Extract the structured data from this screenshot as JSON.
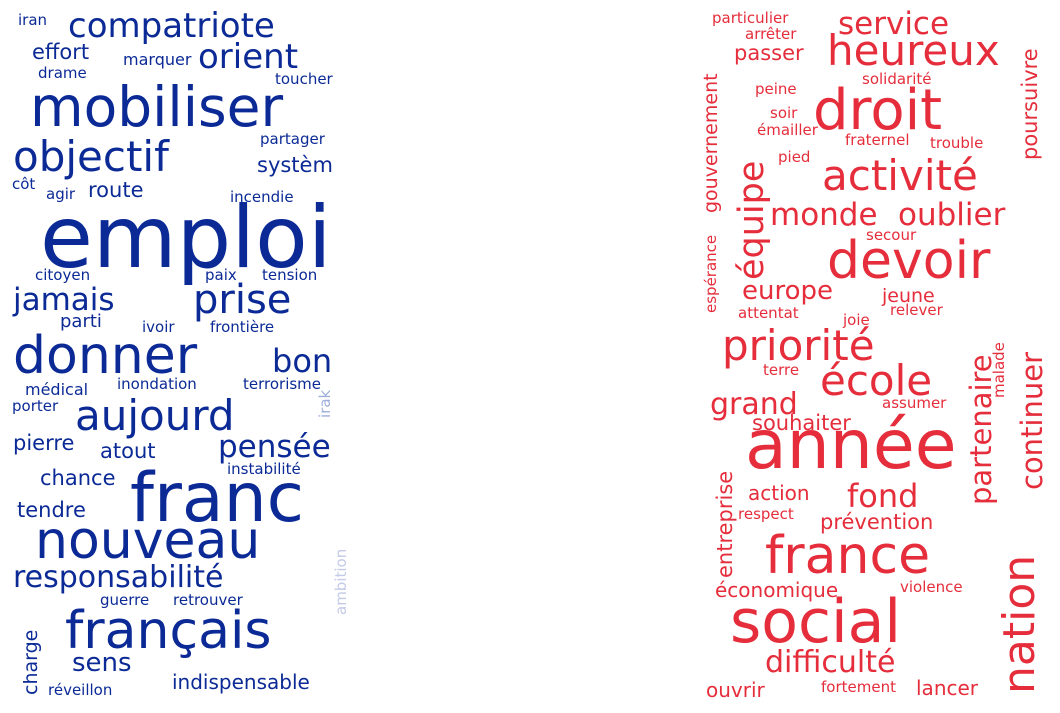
{
  "colors": {
    "left": "#0b2a96",
    "left_faded": "#c3cbe6",
    "right": "#e52d3b",
    "background": "#ffffff"
  },
  "clouds": [
    {
      "side": "left",
      "words": [
        {
          "text": "iran"
        },
        {
          "text": "compatriote"
        },
        {
          "text": "effort"
        },
        {
          "text": "orient"
        },
        {
          "text": "marquer"
        },
        {
          "text": "drame"
        },
        {
          "text": "toucher"
        },
        {
          "text": "mobiliser"
        },
        {
          "text": "partager"
        },
        {
          "text": "objectif"
        },
        {
          "text": "systèm"
        },
        {
          "text": "côt"
        },
        {
          "text": "route"
        },
        {
          "text": "agir"
        },
        {
          "text": "incendie"
        },
        {
          "text": "emploi"
        },
        {
          "text": "citoyen"
        },
        {
          "text": "paix"
        },
        {
          "text": "tension"
        },
        {
          "text": "jamais"
        },
        {
          "text": "prise"
        },
        {
          "text": "parti"
        },
        {
          "text": "ivoir"
        },
        {
          "text": "frontière"
        },
        {
          "text": "donner"
        },
        {
          "text": "bon"
        },
        {
          "text": "médical"
        },
        {
          "text": "inondation"
        },
        {
          "text": "terrorisme"
        },
        {
          "text": "porter"
        },
        {
          "text": "aujourd"
        },
        {
          "text": "irak"
        },
        {
          "text": "pierre"
        },
        {
          "text": "pensée"
        },
        {
          "text": "atout"
        },
        {
          "text": "chance"
        },
        {
          "text": "instabilité"
        },
        {
          "text": "franc"
        },
        {
          "text": "tendre"
        },
        {
          "text": "nouveau"
        },
        {
          "text": "ambition"
        },
        {
          "text": "responsabilité"
        },
        {
          "text": "guerre"
        },
        {
          "text": "retrouver"
        },
        {
          "text": "charge"
        },
        {
          "text": "français"
        },
        {
          "text": "sens"
        },
        {
          "text": "indispensable"
        },
        {
          "text": "réveillon"
        }
      ]
    },
    {
      "side": "right",
      "words": [
        {
          "text": "particulier"
        },
        {
          "text": "service"
        },
        {
          "text": "arrêter"
        },
        {
          "text": "passer"
        },
        {
          "text": "heureux"
        },
        {
          "text": "solidarité"
        },
        {
          "text": "gouvernement"
        },
        {
          "text": "peine"
        },
        {
          "text": "droit"
        },
        {
          "text": "poursuivre"
        },
        {
          "text": "soir"
        },
        {
          "text": "émailler"
        },
        {
          "text": "fraternel"
        },
        {
          "text": "trouble"
        },
        {
          "text": "pied"
        },
        {
          "text": "activité"
        },
        {
          "text": "équipe"
        },
        {
          "text": "monde"
        },
        {
          "text": "oublier"
        },
        {
          "text": "espérance"
        },
        {
          "text": "secour"
        },
        {
          "text": "devoir"
        },
        {
          "text": "europe"
        },
        {
          "text": "jeune"
        },
        {
          "text": "attentat"
        },
        {
          "text": "joie"
        },
        {
          "text": "relever"
        },
        {
          "text": "partenaire"
        },
        {
          "text": "priorité"
        },
        {
          "text": "continuer"
        },
        {
          "text": "malade"
        },
        {
          "text": "terre"
        },
        {
          "text": "école"
        },
        {
          "text": "grand"
        },
        {
          "text": "assumer"
        },
        {
          "text": "souhaiter"
        },
        {
          "text": "année"
        },
        {
          "text": "entreprise"
        },
        {
          "text": "action"
        },
        {
          "text": "fond"
        },
        {
          "text": "respect"
        },
        {
          "text": "prévention"
        },
        {
          "text": "nation"
        },
        {
          "text": "france"
        },
        {
          "text": "économique"
        },
        {
          "text": "violence"
        },
        {
          "text": "social"
        },
        {
          "text": "difficulté"
        },
        {
          "text": "ouvrir"
        },
        {
          "text": "fortement"
        },
        {
          "text": "lancer"
        }
      ]
    }
  ]
}
